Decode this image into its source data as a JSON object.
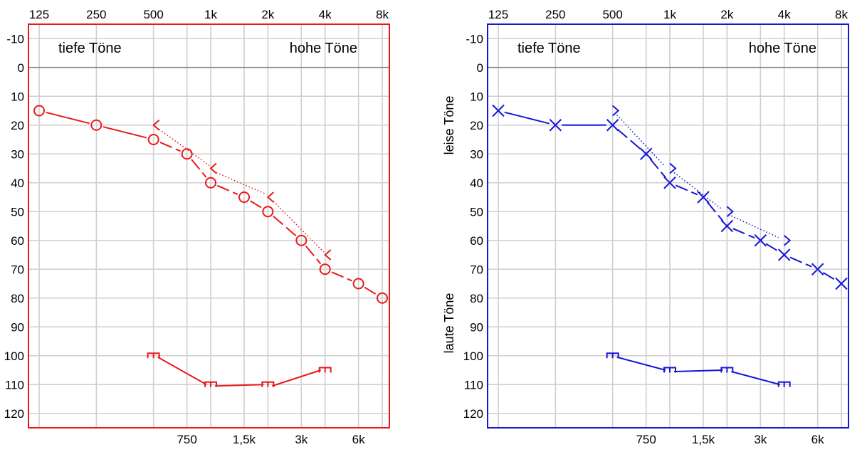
{
  "chart_data": [
    {
      "type": "line",
      "ear": "right",
      "color": "#e8191c",
      "x_top_ticks": [
        "125",
        "250",
        "500",
        "1k",
        "2k",
        "4k",
        "8k"
      ],
      "x_bottom_ticks": [
        "750",
        "1,5k",
        "3k",
        "6k"
      ],
      "y_ticks": [
        "-10",
        "0",
        "10",
        "20",
        "30",
        "40",
        "50",
        "60",
        "70",
        "80",
        "90",
        "100",
        "110",
        "120"
      ],
      "ylim": [
        -15,
        125
      ],
      "region_labels": {
        "low": "tiefe Töne",
        "high": "hohe Töne"
      },
      "y_side_labels": {
        "top": "",
        "bottom": ""
      },
      "series": [
        {
          "marker": "circle",
          "line": "solid",
          "x": [
            125,
            250,
            500,
            750,
            1000,
            1500,
            2000,
            3000,
            4000,
            6000,
            8000
          ],
          "y": [
            15,
            20,
            25,
            30,
            40,
            45,
            50,
            60,
            70,
            75,
            80
          ]
        },
        {
          "marker": "bone-left",
          "line": "dotted",
          "x": [
            500,
            1000,
            2000,
            4000
          ],
          "y": [
            20,
            35,
            45,
            65
          ]
        },
        {
          "marker": "bracket-left",
          "line": "solid",
          "x": [
            500,
            1000,
            2000,
            4000
          ],
          "y": [
            100,
            110,
            110,
            105
          ]
        }
      ]
    },
    {
      "type": "line",
      "ear": "left",
      "color": "#1616d6",
      "x_top_ticks": [
        "125",
        "250",
        "500",
        "1k",
        "2k",
        "4k",
        "8k"
      ],
      "x_bottom_ticks": [
        "750",
        "1,5k",
        "3k",
        "6k"
      ],
      "y_ticks": [
        "-10",
        "0",
        "10",
        "20",
        "30",
        "40",
        "50",
        "60",
        "70",
        "80",
        "90",
        "100",
        "110",
        "120"
      ],
      "ylim": [
        -15,
        125
      ],
      "region_labels": {
        "low": "tiefe Töne",
        "high": "hohe Töne"
      },
      "y_side_labels": {
        "top": "leise Töne",
        "bottom": "laute Töne"
      },
      "series": [
        {
          "marker": "cross",
          "line": "solid",
          "x": [
            125,
            250,
            500,
            750,
            1000,
            1500,
            2000,
            3000,
            4000,
            6000,
            8000
          ],
          "y": [
            15,
            20,
            20,
            30,
            40,
            45,
            55,
            60,
            65,
            70,
            75
          ]
        },
        {
          "marker": "bone-right",
          "line": "dotted",
          "x": [
            500,
            1000,
            2000,
            4000
          ],
          "y": [
            15,
            35,
            50,
            60
          ]
        },
        {
          "marker": "bracket-right",
          "line": "solid",
          "x": [
            500,
            1000,
            2000,
            4000
          ],
          "y": [
            100,
            105,
            105,
            110
          ]
        }
      ]
    }
  ]
}
